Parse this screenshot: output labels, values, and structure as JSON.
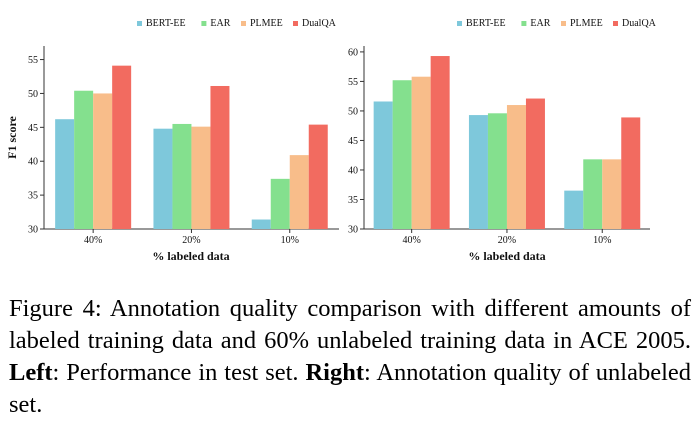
{
  "chart_data": [
    {
      "type": "bar",
      "title": "",
      "categories": [
        "40%",
        "20%",
        "10%"
      ],
      "series": [
        {
          "name": "BERT-EE",
          "color": "#7ec8db",
          "values": [
            46.2,
            44.8,
            31.4
          ]
        },
        {
          "name": "EAR",
          "color": "#84e08e",
          "values": [
            50.4,
            45.5,
            37.4
          ]
        },
        {
          "name": "PLMEE",
          "color": "#f8bd8a",
          "values": [
            50.0,
            45.1,
            40.9
          ]
        },
        {
          "name": "DualQA",
          "color": "#f26b60",
          "values": [
            54.1,
            51.1,
            45.4
          ]
        }
      ],
      "xlabel": "% labeled data",
      "ylabel": "F1 score",
      "ylim": [
        30,
        57
      ],
      "yticks": [
        30,
        35,
        40,
        45,
        50,
        55
      ],
      "legend": "top"
    },
    {
      "type": "bar",
      "title": "",
      "categories": [
        "40%",
        "20%",
        "10%"
      ],
      "series": [
        {
          "name": "BERT-EE",
          "color": "#7ec8db",
          "values": [
            51.6,
            49.3,
            36.5
          ]
        },
        {
          "name": "EAR",
          "color": "#84e08e",
          "values": [
            55.2,
            49.6,
            41.8
          ]
        },
        {
          "name": "PLMEE",
          "color": "#f8bd8a",
          "values": [
            55.8,
            51.0,
            41.8
          ]
        },
        {
          "name": "DualQA",
          "color": "#f26b60",
          "values": [
            59.3,
            52.1,
            48.9
          ]
        }
      ],
      "xlabel": "% labeled data",
      "ylabel": "",
      "ylim": [
        30,
        61
      ],
      "yticks": [
        30,
        35,
        40,
        45,
        50,
        55,
        60
      ],
      "legend": "top"
    }
  ],
  "caption": {
    "prefix": "Figure 4: Annotation quality comparison with different amounts of labeled training data and 60% unlabeled training data in ACE 2005. ",
    "left_label": "Left",
    "left_text": ": Performance in test set. ",
    "right_label": "Right",
    "right_text": ": Annotation quality of unlabeled set."
  }
}
